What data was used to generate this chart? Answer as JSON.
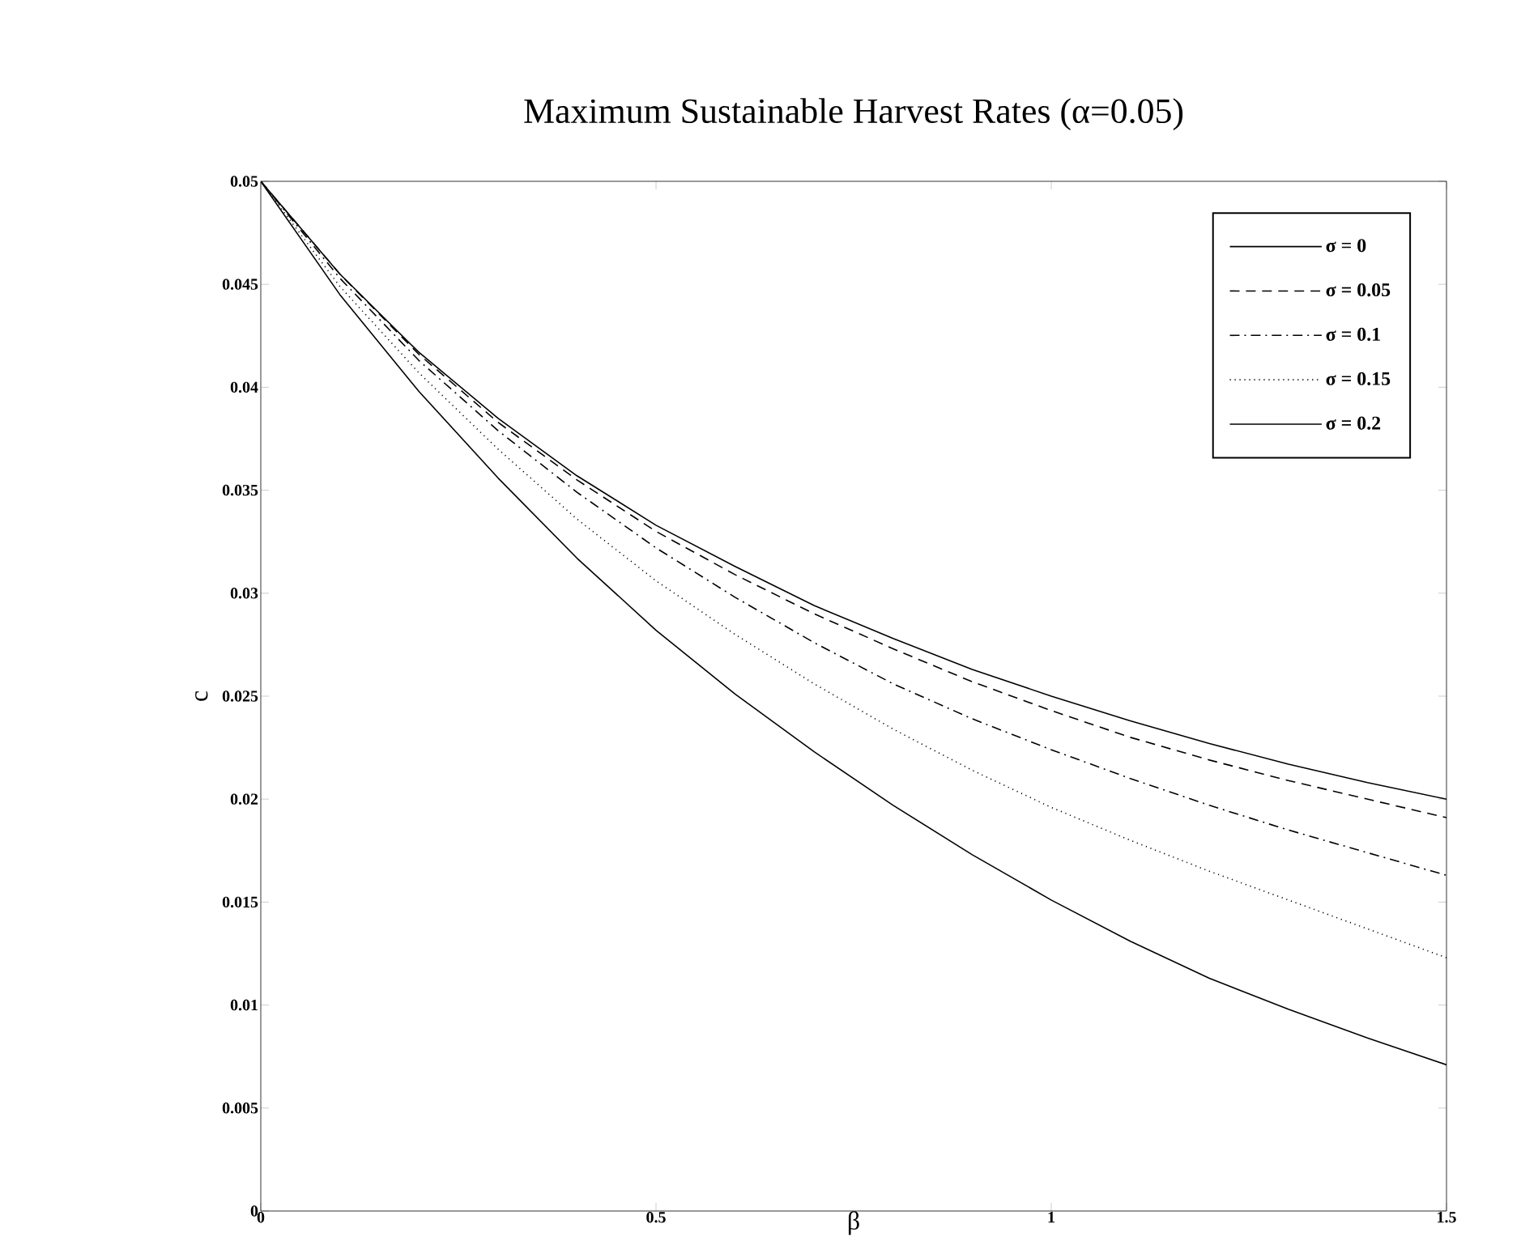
{
  "chart_data": {
    "type": "line",
    "title": "Maximum Sustainable Harvest Rates (α=0.05)",
    "xlabel": "β",
    "ylabel": "c",
    "x": [
      0,
      0.1,
      0.2,
      0.3,
      0.4,
      0.5,
      0.6,
      0.7,
      0.8,
      0.9,
      1.0,
      1.1,
      1.2,
      1.3,
      1.4,
      1.5
    ],
    "series": [
      {
        "name": "σ = 0",
        "color": "#000000",
        "line_style": "solid",
        "values": [
          0.05,
          0.0455,
          0.0417,
          0.0385,
          0.0357,
          0.0333,
          0.0313,
          0.0294,
          0.0278,
          0.0263,
          0.025,
          0.0238,
          0.0227,
          0.0217,
          0.0208,
          0.02
        ]
      },
      {
        "name": "σ = 0.05",
        "color": "#000000",
        "line_style": "dashed",
        "values": [
          0.05,
          0.0455,
          0.0416,
          0.0383,
          0.0355,
          0.033,
          0.0309,
          0.029,
          0.0273,
          0.0257,
          0.0243,
          0.023,
          0.0219,
          0.0209,
          0.02,
          0.0191
        ]
      },
      {
        "name": "σ = 0.1",
        "color": "#000000",
        "line_style": "dashdot",
        "values": [
          0.05,
          0.0453,
          0.0413,
          0.0379,
          0.0349,
          0.0322,
          0.0298,
          0.0276,
          0.0256,
          0.0239,
          0.0224,
          0.021,
          0.0197,
          0.0185,
          0.0174,
          0.0163
        ]
      },
      {
        "name": "σ = 0.15",
        "color": "#000000",
        "line_style": "dotted",
        "values": [
          0.05,
          0.0449,
          0.0407,
          0.037,
          0.0336,
          0.0306,
          0.028,
          0.0256,
          0.0234,
          0.0214,
          0.0196,
          0.018,
          0.0165,
          0.0151,
          0.0137,
          0.0123
        ]
      },
      {
        "name": "σ = 0.2",
        "color": "#000000",
        "line_style": "solid",
        "values": [
          0.05,
          0.0445,
          0.0398,
          0.0356,
          0.0317,
          0.0282,
          0.0251,
          0.0223,
          0.0197,
          0.0173,
          0.0151,
          0.0131,
          0.0113,
          0.0098,
          0.0084,
          0.0071
        ]
      }
    ],
    "xlim": [
      0,
      1.5
    ],
    "xticks": [
      0,
      0.5,
      1,
      1.5
    ],
    "ylim": [
      0,
      0.05
    ],
    "yticks": [
      0,
      0.005,
      0.01,
      0.015,
      0.02,
      0.025,
      0.03,
      0.035,
      0.04,
      0.045,
      0.05
    ],
    "grid": false,
    "legend": "top right",
    "marker": "none"
  }
}
